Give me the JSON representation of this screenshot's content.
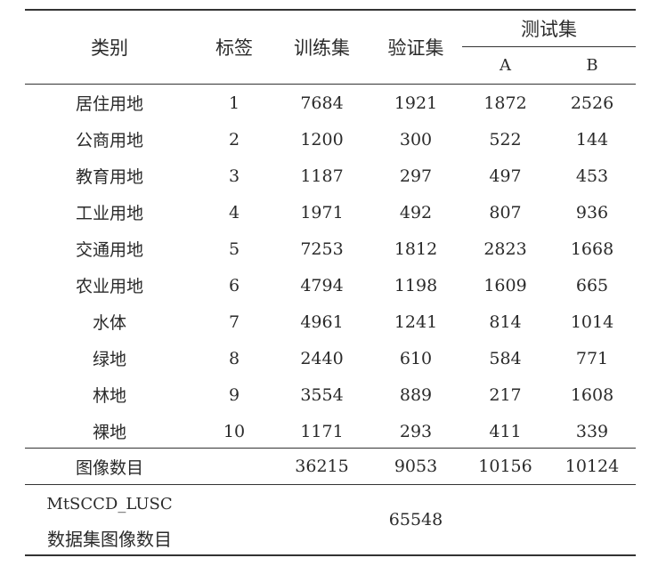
{
  "table": {
    "headers": {
      "category": "类别",
      "label": "标签",
      "train": "训练集",
      "val": "验证集",
      "test": "测试集",
      "test_a": "A",
      "test_b": "B"
    },
    "rows": [
      {
        "category": "居住用地",
        "label": "1",
        "train": "7684",
        "val": "1921",
        "a": "1872",
        "b": "2526"
      },
      {
        "category": "公商用地",
        "label": "2",
        "train": "1200",
        "val": "300",
        "a": "522",
        "b": "144"
      },
      {
        "category": "教育用地",
        "label": "3",
        "train": "1187",
        "val": "297",
        "a": "497",
        "b": "453"
      },
      {
        "category": "工业用地",
        "label": "4",
        "train": "1971",
        "val": "492",
        "a": "807",
        "b": "936"
      },
      {
        "category": "交通用地",
        "label": "5",
        "train": "7253",
        "val": "1812",
        "a": "2823",
        "b": "1668"
      },
      {
        "category": "农业用地",
        "label": "6",
        "train": "4794",
        "val": "1198",
        "a": "1609",
        "b": "665"
      },
      {
        "category": "水体",
        "label": "7",
        "train": "4961",
        "val": "1241",
        "a": "814",
        "b": "1014"
      },
      {
        "category": "绿地",
        "label": "8",
        "train": "2440",
        "val": "610",
        "a": "584",
        "b": "771"
      },
      {
        "category": "林地",
        "label": "9",
        "train": "3554",
        "val": "889",
        "a": "217",
        "b": "1608"
      },
      {
        "category": "裸地",
        "label": "10",
        "train": "1171",
        "val": "293",
        "a": "411",
        "b": "339"
      }
    ],
    "totals": {
      "category": "图像数目",
      "train": "36215",
      "val": "9053",
      "a": "10156",
      "b": "10124"
    },
    "dataset": {
      "line1": "MtSCCD_LUSC",
      "line2": "数据集图像数目",
      "value": "65548"
    }
  }
}
